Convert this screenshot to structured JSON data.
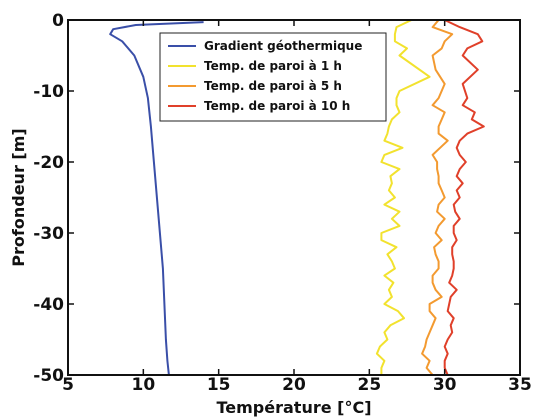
{
  "chart_data": {
    "type": "line",
    "xlabel": "Température [°C]",
    "ylabel": "Profondeur [m]",
    "xlim": [
      5,
      35
    ],
    "ylim": [
      -50,
      0
    ],
    "xticks": [
      5,
      10,
      15,
      20,
      25,
      30,
      35
    ],
    "yticks": [
      0,
      -10,
      -20,
      -30,
      -40,
      -50
    ],
    "grid": false,
    "legend_position": "top-right",
    "series": [
      {
        "name": "Gradient géothermique",
        "color": "#3a4fa8",
        "x": [
          14.0,
          9.5,
          8.0,
          7.8,
          8.6,
          9.4,
          10.0,
          10.3,
          10.5,
          10.7,
          10.9,
          11.1,
          11.3,
          11.4,
          11.5,
          11.6,
          11.7
        ],
        "y": [
          -0.3,
          -0.7,
          -1.3,
          -2.0,
          -3.0,
          -5.0,
          -8.0,
          -11.0,
          -15.0,
          -20.0,
          -25.0,
          -30.0,
          -35.0,
          -40.0,
          -45.0,
          -48.0,
          -50.0
        ]
      },
      {
        "name": "Temp. de paroi à 1 h",
        "color": "#f2e22e",
        "x": [
          27.8,
          26.8,
          26.7,
          26.7,
          27.5,
          27.0,
          29.0,
          27.0,
          26.8,
          26.8,
          27.0,
          26.5,
          26.3,
          26.2,
          26.0,
          27.2,
          26.0,
          25.8,
          27.0,
          26.4,
          26.5,
          26.3,
          26.7,
          26.0,
          27.0,
          26.5,
          27.0,
          25.8,
          25.8,
          26.8,
          26.2,
          26.5,
          26.7,
          26.0,
          26.6,
          26.3,
          26.5,
          26.0,
          26.9,
          27.3,
          26.4,
          26.0,
          26.2,
          25.7,
          25.5,
          26.0,
          25.8,
          25.8
        ],
        "y": [
          0,
          -1,
          -2,
          -3,
          -4,
          -5,
          -8,
          -10,
          -11,
          -12,
          -13,
          -14,
          -15,
          -16,
          -17,
          -18,
          -19,
          -20,
          -21,
          -22,
          -23,
          -24,
          -25,
          -26,
          -27,
          -28,
          -29,
          -30,
          -31,
          -32,
          -33,
          -34,
          -35,
          -36,
          -37,
          -38,
          -39,
          -40,
          -41,
          -42,
          -43,
          -44,
          -45,
          -46,
          -47,
          -48,
          -49,
          -50
        ]
      },
      {
        "name": "Temp. de paroi à 5 h",
        "color": "#f39a30",
        "x": [
          29.6,
          29.2,
          30.5,
          30.0,
          29.8,
          29.2,
          29.4,
          30.0,
          29.6,
          29.2,
          30.0,
          29.8,
          29.6,
          29.6,
          30.2,
          29.7,
          29.2,
          29.5,
          29.5,
          29.6,
          29.6,
          29.8,
          30.0,
          29.6,
          29.5,
          30.0,
          29.6,
          29.4,
          29.8,
          29.3,
          29.4,
          29.6,
          29.6,
          29.2,
          29.2,
          29.4,
          29.8,
          29.0,
          29.0,
          29.4,
          29.2,
          29.0,
          28.8,
          28.7,
          28.5,
          29.0,
          28.8,
          29.2
        ],
        "y": [
          0,
          -1,
          -2,
          -3,
          -4,
          -5,
          -7,
          -9,
          -11,
          -12,
          -13,
          -14,
          -15,
          -16,
          -17,
          -18,
          -19,
          -20,
          -21,
          -22,
          -23,
          -24,
          -25,
          -26,
          -27,
          -28,
          -29,
          -30,
          -31,
          -32,
          -33,
          -34,
          -35,
          -36,
          -37,
          -38,
          -39,
          -40,
          -41,
          -42,
          -43,
          -44,
          -45,
          -46,
          -47,
          -48,
          -49,
          -50
        ]
      },
      {
        "name": "Temp. de paroi à 10 h",
        "color": "#e0402a",
        "x": [
          30.0,
          31.0,
          32.2,
          32.5,
          31.5,
          31.2,
          32.2,
          31.2,
          31.5,
          31.2,
          32.0,
          31.8,
          32.6,
          31.5,
          31.0,
          30.8,
          31.0,
          31.4,
          31.0,
          30.8,
          31.2,
          30.8,
          31.0,
          30.6,
          30.7,
          31.0,
          30.6,
          30.6,
          30.8,
          30.5,
          30.5,
          30.6,
          30.6,
          30.5,
          30.3,
          30.8,
          30.4,
          30.3,
          30.2,
          30.6,
          30.4,
          30.5,
          30.2,
          30.0,
          30.2,
          30.0,
          30.0,
          30.2
        ],
        "y": [
          0,
          -1,
          -2,
          -3,
          -4,
          -5,
          -7,
          -9,
          -11,
          -12,
          -13,
          -14,
          -15,
          -16,
          -17,
          -18,
          -19,
          -20,
          -21,
          -22,
          -23,
          -24,
          -25,
          -26,
          -27,
          -28,
          -29,
          -30,
          -31,
          -32,
          -33,
          -34,
          -35,
          -36,
          -37,
          -38,
          -39,
          -40,
          -41,
          -42,
          -43,
          -44,
          -45,
          -46,
          -47,
          -48,
          -49,
          -50
        ]
      }
    ]
  }
}
